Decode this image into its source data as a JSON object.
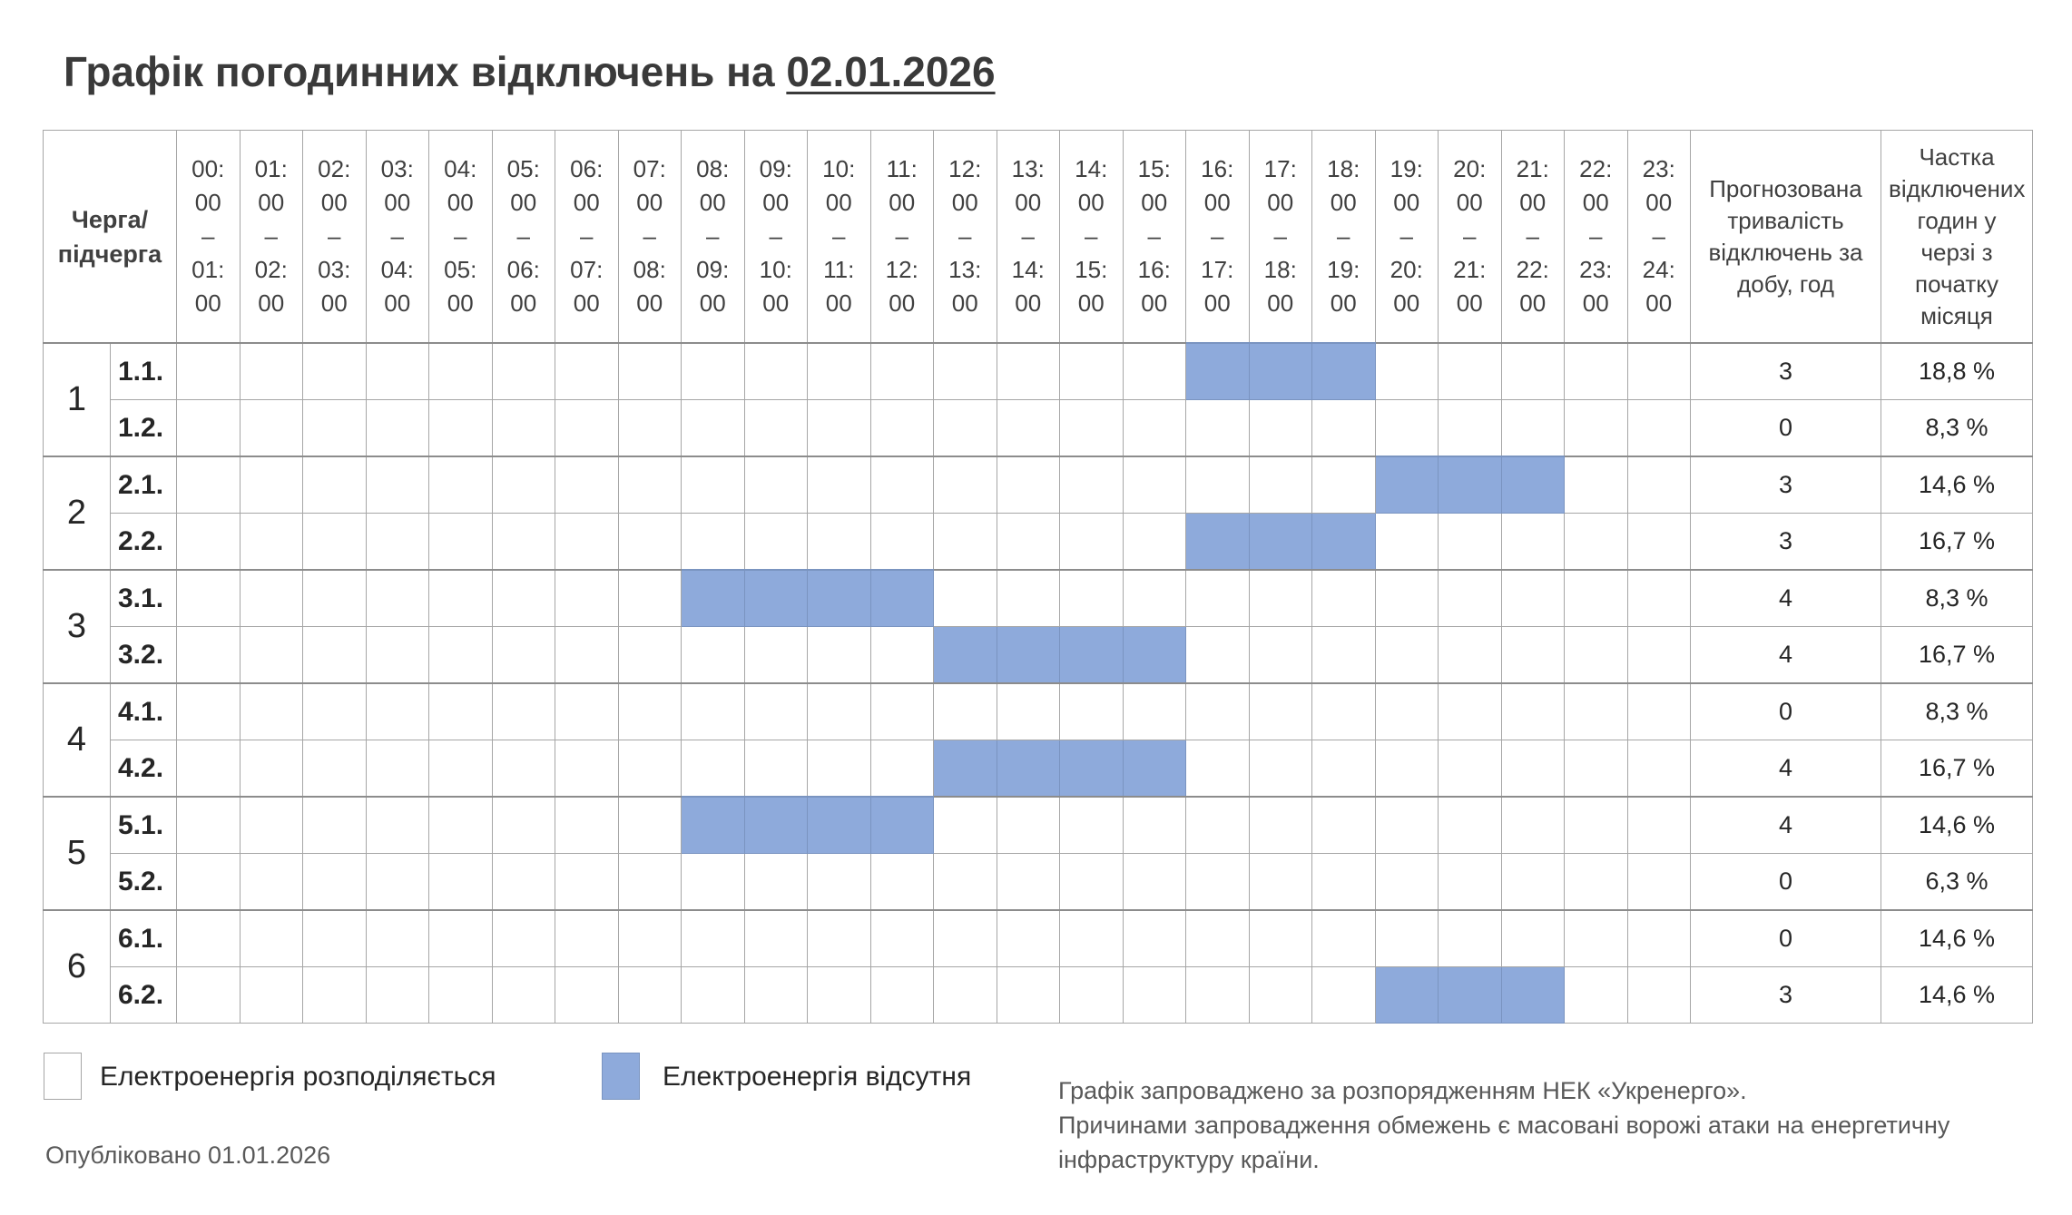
{
  "title": {
    "prefix": "Графік погодинних відключень на",
    "date": "02.01.2026"
  },
  "table": {
    "queue_header": "Черга/\nпідчерга",
    "hours": [
      "00:\n00\n–\n01:\n00",
      "01:\n00\n–\n02:\n00",
      "02:\n00\n–\n03:\n00",
      "03:\n00\n–\n04:\n00",
      "04:\n00\n–\n05:\n00",
      "05:\n00\n–\n06:\n00",
      "06:\n00\n–\n07:\n00",
      "07:\n00\n–\n08:\n00",
      "08:\n00\n–\n09:\n00",
      "09:\n00\n–\n10:\n00",
      "10:\n00\n–\n11:\n00",
      "11:\n00\n–\n12:\n00",
      "12:\n00\n–\n13:\n00",
      "13:\n00\n–\n14:\n00",
      "14:\n00\n–\n15:\n00",
      "15:\n00\n–\n16:\n00",
      "16:\n00\n–\n17:\n00",
      "17:\n00\n–\n18:\n00",
      "18:\n00\n–\n19:\n00",
      "19:\n00\n–\n20:\n00",
      "20:\n00\n–\n21:\n00",
      "21:\n00\n–\n22:\n00",
      "22:\n00\n–\n23:\n00",
      "23:\n00\n–\n24:\n00"
    ],
    "duration_header": "Прогнозована тривалість відключень за добу, год",
    "share_header": "Частка відключених годин у черзі з початку місяця",
    "groups": [
      {
        "queue": "1",
        "rows": [
          {
            "sub": "1.1.",
            "off": [
              16,
              17,
              18
            ],
            "duration": "3",
            "share": "18,8 %"
          },
          {
            "sub": "1.2.",
            "off": [],
            "duration": "0",
            "share": "8,3 %"
          }
        ]
      },
      {
        "queue": "2",
        "rows": [
          {
            "sub": "2.1.",
            "off": [
              19,
              20,
              21
            ],
            "duration": "3",
            "share": "14,6 %"
          },
          {
            "sub": "2.2.",
            "off": [
              16,
              17,
              18
            ],
            "duration": "3",
            "share": "16,7 %"
          }
        ]
      },
      {
        "queue": "3",
        "rows": [
          {
            "sub": "3.1.",
            "off": [
              8,
              9,
              10,
              11
            ],
            "duration": "4",
            "share": "8,3 %"
          },
          {
            "sub": "3.2.",
            "off": [
              12,
              13,
              14,
              15
            ],
            "duration": "4",
            "share": "16,7 %"
          }
        ]
      },
      {
        "queue": "4",
        "rows": [
          {
            "sub": "4.1.",
            "off": [],
            "duration": "0",
            "share": "8,3 %"
          },
          {
            "sub": "4.2.",
            "off": [
              12,
              13,
              14,
              15
            ],
            "duration": "4",
            "share": "16,7 %"
          }
        ]
      },
      {
        "queue": "5",
        "rows": [
          {
            "sub": "5.1.",
            "off": [
              8,
              9,
              10,
              11
            ],
            "duration": "4",
            "share": "14,6 %"
          },
          {
            "sub": "5.2.",
            "off": [],
            "duration": "0",
            "share": "6,3 %"
          }
        ]
      },
      {
        "queue": "6",
        "rows": [
          {
            "sub": "6.1.",
            "off": [],
            "duration": "0",
            "share": "14,6 %"
          },
          {
            "sub": "6.2.",
            "off": [
              19,
              20,
              21
            ],
            "duration": "3",
            "share": "14,6 %"
          }
        ]
      }
    ]
  },
  "legend": {
    "on_label": "Електроенергія розподіляється",
    "off_label": "Електроенергія відсутня",
    "off_color": "#8eaadb"
  },
  "published": "Опубліковано 01.01.2026",
  "note": {
    "line1": "Графік запроваджено за розпорядженням НЕК «Укренерго».",
    "line2": "Причинами запровадження обмежень є масовані ворожі атаки на енергетичну",
    "line3": "інфраструктуру країни."
  }
}
